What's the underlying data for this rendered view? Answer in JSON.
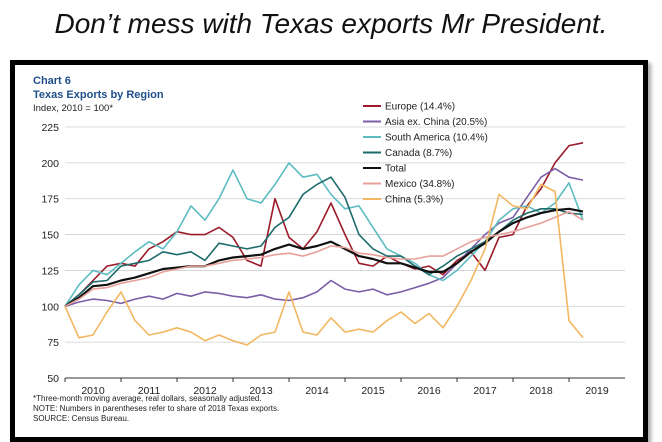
{
  "headline": "Don’t mess with Texas exports Mr President.",
  "chart_data": {
    "type": "line",
    "chart_number": "Chart 6",
    "title": "Texas Exports by Region",
    "subtitle": "Index, 2010 = 100*",
    "xlabel": "",
    "ylabel": "",
    "xlim": [
      2009.5,
      2019.5
    ],
    "ylim": [
      50,
      225
    ],
    "yticks": [
      50,
      75,
      100,
      125,
      150,
      175,
      200,
      225
    ],
    "xticks": [
      "2010",
      "2011",
      "2012",
      "2013",
      "2014",
      "2015",
      "2016",
      "2017",
      "2018",
      "2019"
    ],
    "legend_position": "top-right",
    "footnotes": [
      "*Three-month moving average, real dollars, seasonally adjusted.",
      "NOTE: Numbers in parentheses refer to share of 2018 Texas exports.",
      "SOURCE: Census Bureau."
    ],
    "x": [
      2009.5,
      2009.75,
      2010,
      2010.25,
      2010.5,
      2010.75,
      2011,
      2011.25,
      2011.5,
      2011.75,
      2012,
      2012.25,
      2012.5,
      2012.75,
      2013,
      2013.25,
      2013.5,
      2013.75,
      2014,
      2014.25,
      2014.5,
      2014.75,
      2015,
      2015.25,
      2015.5,
      2015.75,
      2016,
      2016.25,
      2016.5,
      2016.75,
      2017,
      2017.25,
      2017.5,
      2017.75,
      2018,
      2018.25,
      2018.5,
      2018.75
    ],
    "series": [
      {
        "name": "Europe (14.4%)",
        "color": "#9b1b2a",
        "width": 1.6,
        "values": [
          100,
          108,
          118,
          128,
          130,
          128,
          140,
          145,
          152,
          150,
          150,
          155,
          148,
          132,
          128,
          175,
          148,
          140,
          152,
          172,
          150,
          130,
          128,
          135,
          130,
          126,
          128,
          122,
          132,
          138,
          125,
          148,
          150,
          170,
          182,
          200,
          212,
          214
        ]
      },
      {
        "name": "Asia ex. China (20.5%)",
        "color": "#7b5ea7",
        "width": 1.6,
        "values": [
          100,
          103,
          105,
          104,
          102,
          105,
          107,
          105,
          109,
          107,
          110,
          109,
          107,
          106,
          108,
          105,
          104,
          106,
          110,
          118,
          112,
          110,
          112,
          108,
          110,
          113,
          116,
          120,
          130,
          140,
          150,
          158,
          162,
          176,
          190,
          196,
          190,
          188
        ]
      },
      {
        "name": "South America (10.4%)",
        "color": "#5dbcc2",
        "width": 1.6,
        "values": [
          100,
          115,
          125,
          122,
          130,
          138,
          145,
          140,
          152,
          170,
          160,
          175,
          195,
          175,
          172,
          185,
          200,
          190,
          192,
          178,
          168,
          170,
          155,
          140,
          135,
          130,
          122,
          118,
          125,
          135,
          145,
          160,
          168,
          170,
          165,
          172,
          186,
          160
        ]
      },
      {
        "name": "Canada (8.7%)",
        "color": "#1e6b6b",
        "width": 1.6,
        "values": [
          100,
          108,
          117,
          118,
          128,
          130,
          132,
          138,
          136,
          138,
          132,
          144,
          142,
          140,
          142,
          155,
          162,
          178,
          185,
          190,
          176,
          150,
          140,
          135,
          135,
          128,
          122,
          128,
          135,
          140,
          145,
          152,
          160,
          165,
          168,
          168,
          165,
          164
        ]
      },
      {
        "name": "Total",
        "color": "#111111",
        "width": 2.2,
        "values": [
          100,
          106,
          114,
          115,
          118,
          120,
          123,
          126,
          127,
          128,
          128,
          132,
          134,
          135,
          136,
          140,
          143,
          140,
          142,
          145,
          140,
          135,
          133,
          130,
          130,
          127,
          124,
          124,
          130,
          138,
          144,
          152,
          158,
          162,
          165,
          167,
          168,
          166
        ]
      },
      {
        "name": "Mexico (34.8%)",
        "color": "#e8a09a",
        "width": 1.6,
        "values": [
          100,
          105,
          112,
          113,
          116,
          118,
          120,
          124,
          126,
          128,
          128,
          130,
          132,
          133,
          134,
          136,
          137,
          135,
          138,
          142,
          141,
          137,
          136,
          134,
          133,
          133,
          135,
          135,
          140,
          145,
          148,
          150,
          152,
          155,
          158,
          162,
          166,
          160
        ]
      },
      {
        "name": "China (5.3%)",
        "color": "#f2b760",
        "width": 1.6,
        "values": [
          100,
          78,
          80,
          96,
          110,
          90,
          80,
          82,
          85,
          82,
          76,
          80,
          76,
          73,
          80,
          82,
          110,
          82,
          80,
          92,
          82,
          84,
          82,
          90,
          96,
          88,
          95,
          85,
          100,
          118,
          140,
          178,
          170,
          168,
          185,
          180,
          90,
          78
        ]
      }
    ]
  }
}
